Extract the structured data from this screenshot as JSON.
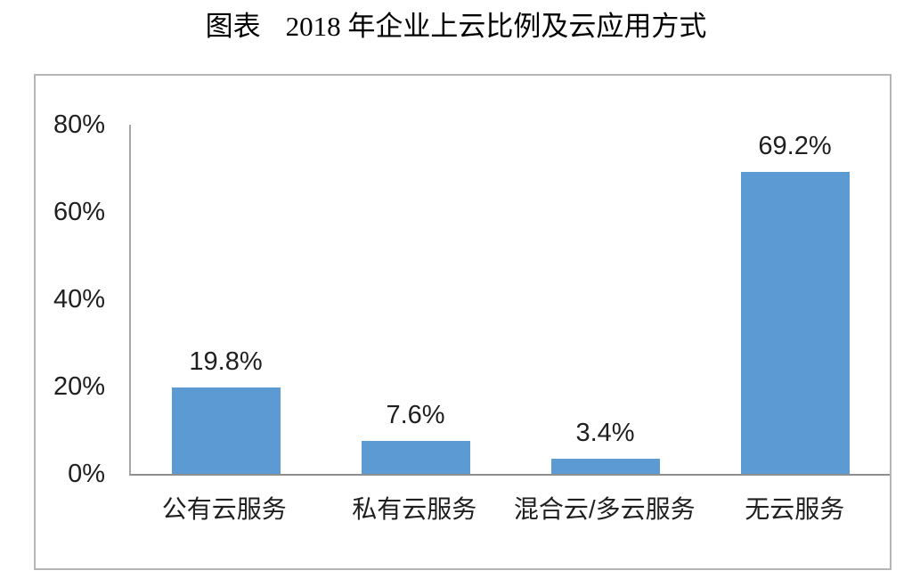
{
  "title": {
    "prefix": "图表",
    "main": "2018 年企业上云比例及云应用方式"
  },
  "chart_data": {
    "type": "bar",
    "title": "图表 2018 年企业上云比例及云应用方式",
    "categories": [
      "公有云服务",
      "私有云服务",
      "混合云/多云服务",
      "无云服务"
    ],
    "values": [
      19.8,
      7.6,
      3.4,
      69.2
    ],
    "data_labels": [
      "19.8%",
      "7.6%",
      "3.4%",
      "69.2%"
    ],
    "xlabel": "",
    "ylabel": "",
    "ylim": [
      0,
      80
    ],
    "yticks": [
      {
        "value": 80,
        "label": "80%"
      },
      {
        "value": 60,
        "label": "60%"
      },
      {
        "value": 40,
        "label": "40%"
      },
      {
        "value": 20,
        "label": "20%"
      },
      {
        "value": 0,
        "label": "0%"
      }
    ],
    "grid": false,
    "legend": false,
    "bar_color": "#5B9AD3",
    "axis_color": "#9c9c9c",
    "frame_border_color": "#b5b5b5",
    "text_color": "#1f1f1f"
  }
}
